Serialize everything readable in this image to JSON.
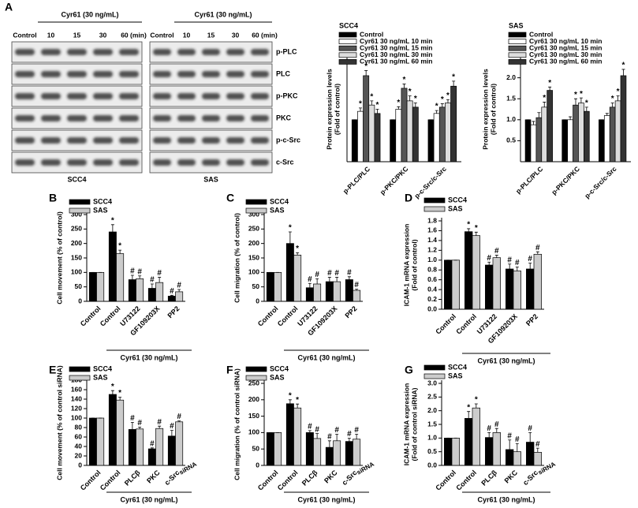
{
  "blot_panel": {
    "label": "A",
    "rows": [
      "p-PLC",
      "PLC",
      "p-PKC",
      "PKC",
      "p-c-Src",
      "c-Src"
    ],
    "blots": [
      {
        "caption": "SCC4",
        "treatment": "Cyr61 (30 ng/mL)",
        "lanes": [
          "Control",
          "10",
          "15",
          "30",
          "60 (min)"
        ]
      },
      {
        "caption": "SAS",
        "treatment": "Cyr61 (30 ng/mL)",
        "lanes": [
          "Control",
          "10",
          "15",
          "30",
          "60 (min)"
        ]
      }
    ]
  },
  "chart_data": [
    {
      "type": "bar",
      "title": "SCC4",
      "ylabel": [
        "Protein expression levels",
        "(Fold of control)"
      ],
      "categories": [
        "p-PLC/PLC",
        "p-PKC/PKC",
        "p-c-Src/c-Src"
      ],
      "ylim": [
        0,
        2.5
      ],
      "series": [
        {
          "name": "Control",
          "color": "#000000",
          "values": [
            1,
            1,
            1
          ],
          "errors": [
            0,
            0,
            0
          ],
          "annotations": [
            null,
            null,
            null
          ]
        },
        {
          "name": "Cyr61 30 ng/mL 10 min",
          "color": "#ffffff",
          "values": [
            1.2,
            1.25,
            1.15
          ],
          "errors": [
            0.08,
            0.06,
            0.07
          ],
          "annotations": [
            "*",
            "*",
            "*"
          ]
        },
        {
          "name": "Cyr61 30 ng/mL 15 min",
          "color": "#555555",
          "values": [
            2.05,
            1.75,
            1.3
          ],
          "errors": [
            0.12,
            0.1,
            0.08
          ],
          "annotations": [
            "*",
            "*",
            "*"
          ]
        },
        {
          "name": "Cyr61 30 ng/mL 30 min",
          "color": "#dddddd",
          "values": [
            1.35,
            1.45,
            1.4
          ],
          "errors": [
            0.1,
            0.12,
            0.08
          ],
          "annotations": [
            "*",
            "*",
            "*"
          ]
        },
        {
          "name": "Cyr61 30 ng/mL 60 min",
          "color": "#333333",
          "values": [
            1.15,
            1.3,
            1.8
          ],
          "errors": [
            0.1,
            0.1,
            0.12
          ],
          "annotations": [
            "*",
            "*",
            "*"
          ]
        }
      ]
    },
    {
      "type": "bar",
      "title": "SAS",
      "ylabel": [
        "Protein expression levels",
        "(Fold of control)"
      ],
      "categories": [
        "p-PLC/PLC",
        "p-PKC/PKC",
        "p-c-Src/c-Src"
      ],
      "ylim": [
        0,
        2.5
      ],
      "yticks": [
        {
          "value": 0.5,
          "label": "0.5"
        },
        {
          "value": 1,
          "label": "1.0"
        },
        {
          "value": 1.5,
          "label": "1.5"
        },
        {
          "value": 2,
          "label": "2.0"
        }
      ],
      "series": [
        {
          "name": "Control",
          "color": "#000000",
          "values": [
            1,
            1,
            1
          ],
          "errors": [
            0,
            0,
            0
          ],
          "annotations": [
            null,
            null,
            null
          ]
        },
        {
          "name": "Cyr61 30 ng/mL 10 min",
          "color": "#ffffff",
          "values": [
            0.88,
            1.0,
            1.1
          ],
          "errors": [
            0.08,
            0.07,
            0.05
          ],
          "annotations": [
            null,
            null,
            null
          ]
        },
        {
          "name": "Cyr61 30 ng/mL 15 min",
          "color": "#555555",
          "values": [
            1.05,
            1.35,
            1.3
          ],
          "errors": [
            0.12,
            0.15,
            0.1
          ],
          "annotations": [
            null,
            "*",
            "*"
          ]
        },
        {
          "name": "Cyr61 30 ng/mL 30 min",
          "color": "#dddddd",
          "values": [
            1.3,
            1.4,
            1.45
          ],
          "errors": [
            0.12,
            0.12,
            0.12
          ],
          "annotations": [
            "*",
            "*",
            "*"
          ]
        },
        {
          "name": "Cyr61 30 ng/mL 60 min",
          "color": "#333333",
          "values": [
            1.7,
            1.2,
            2.05
          ],
          "errors": [
            0.08,
            0.1,
            0.15
          ],
          "annotations": [
            "*",
            "*",
            "*"
          ]
        }
      ]
    },
    {
      "type": "bar",
      "panel": "B",
      "ylabel": [
        "Cell movement (% of control)"
      ],
      "group_label": "Cyr61 (30 ng/mL)",
      "categories": [
        "Control",
        "Control",
        "U73122",
        "GF109203X",
        "PP2"
      ],
      "ylim": [
        0,
        300
      ],
      "yticks": [
        0,
        50,
        100,
        150,
        200,
        250,
        300
      ],
      "series": [
        {
          "name": "SCC4",
          "color": "#000000",
          "values": [
            100,
            240,
            75,
            45,
            18
          ],
          "errors": [
            0,
            25,
            15,
            15,
            3
          ],
          "annotations": [
            null,
            "*",
            "#",
            "#",
            "#"
          ]
        },
        {
          "name": "SAS",
          "color": "#cccccc",
          "values": [
            100,
            165,
            78,
            65,
            33
          ],
          "errors": [
            0,
            12,
            10,
            18,
            8
          ],
          "annotations": [
            null,
            "*",
            "#",
            "#",
            "#"
          ]
        }
      ]
    },
    {
      "type": "bar",
      "panel": "C",
      "ylabel": [
        "Cell migration (% of control)"
      ],
      "group_label": "Cyr61 (30 ng/mL)",
      "categories": [
        "Control",
        "Control",
        "U73122",
        "GF109203X",
        "PP2"
      ],
      "ylim": [
        0,
        300
      ],
      "yticks": [
        0,
        50,
        100,
        150,
        200,
        250,
        300
      ],
      "series": [
        {
          "name": "SCC4",
          "color": "#000000",
          "values": [
            100,
            200,
            47,
            68,
            75
          ],
          "errors": [
            0,
            40,
            15,
            15,
            10
          ],
          "annotations": [
            null,
            "*",
            "#",
            "#",
            "#"
          ]
        },
        {
          "name": "SAS",
          "color": "#cccccc",
          "values": [
            100,
            160,
            60,
            68,
            38
          ],
          "errors": [
            0,
            8,
            18,
            15,
            4
          ],
          "annotations": [
            null,
            "*",
            "#",
            "#",
            "#"
          ]
        }
      ]
    },
    {
      "type": "bar",
      "panel": "D",
      "ylabel": [
        "ICAM-1 mRNA expression",
        "(Fold of control)"
      ],
      "group_label": "Cyr61 (30 ng/mL)",
      "categories": [
        "Control",
        "Control",
        "U73122",
        "GF109203X",
        "PP2"
      ],
      "ylim": [
        0,
        1.8
      ],
      "yticks": [
        {
          "value": 0,
          "label": "0.0"
        },
        {
          "value": 0.2,
          "label": "0.2"
        },
        {
          "value": 0.4,
          "label": "0.4"
        },
        {
          "value": 0.6,
          "label": "0.6"
        },
        {
          "value": 0.8,
          "label": "0.8"
        },
        {
          "value": 1,
          "label": "1.0"
        },
        {
          "value": 1.2,
          "label": "1.2"
        },
        {
          "value": 1.4,
          "label": "1.4"
        },
        {
          "value": 1.6,
          "label": "1.6"
        },
        {
          "value": 1.8,
          "label": "1.8"
        }
      ],
      "series": [
        {
          "name": "SCC4",
          "color": "#000000",
          "values": [
            1,
            1.58,
            0.9,
            0.82,
            0.82
          ],
          "errors": [
            0,
            0.06,
            0.06,
            0.1,
            0.12
          ],
          "annotations": [
            null,
            "*",
            "#",
            "#",
            "#"
          ]
        },
        {
          "name": "SAS",
          "color": "#cccccc",
          "values": [
            1,
            1.5,
            1.05,
            0.78,
            1.12
          ],
          "errors": [
            0,
            0.07,
            0.05,
            0.08,
            0.05
          ],
          "annotations": [
            null,
            "*",
            "#",
            "#",
            "#"
          ]
        }
      ]
    },
    {
      "type": "bar",
      "panel": "E",
      "ylabel": [
        "Cell movement (% of control siRNA)"
      ],
      "group_label": "Cyr61 (30 ng/mL)",
      "suffix_label": "siRNA",
      "categories": [
        "Control",
        "Control",
        "PLCβ",
        "PKC",
        "c-Src"
      ],
      "ylim": [
        0,
        180
      ],
      "yticks": [
        0,
        20,
        40,
        60,
        80,
        100,
        120,
        140,
        160,
        180
      ],
      "series": [
        {
          "name": "SCC4",
          "color": "#000000",
          "values": [
            100,
            150,
            76,
            35,
            62
          ],
          "errors": [
            0,
            8,
            15,
            2,
            12
          ],
          "annotations": [
            null,
            "*",
            "#",
            "#",
            "#"
          ]
        },
        {
          "name": "SAS",
          "color": "#cccccc",
          "values": [
            100,
            138,
            77,
            78,
            92
          ],
          "errors": [
            0,
            6,
            4,
            5,
            2
          ],
          "annotations": [
            null,
            "*",
            "#",
            "#",
            "#"
          ]
        }
      ]
    },
    {
      "type": "bar",
      "panel": "F",
      "ylabel": [
        "Cell migration (% of control siRNA)"
      ],
      "group_label": "Cyr61 (30 ng/mL)",
      "suffix_label": "siRNA",
      "categories": [
        "Control",
        "Control",
        "PLCβ",
        "PKC",
        "c-Src"
      ],
      "ylim": [
        0,
        250
      ],
      "yticks": [
        0,
        50,
        100,
        150,
        200,
        250
      ],
      "series": [
        {
          "name": "SCC4",
          "color": "#000000",
          "values": [
            100,
            188,
            100,
            55,
            73
          ],
          "errors": [
            0,
            12,
            6,
            20,
            10
          ],
          "annotations": [
            null,
            "*",
            "#",
            "#",
            "#"
          ]
        },
        {
          "name": "SAS",
          "color": "#cccccc",
          "values": [
            100,
            175,
            82,
            75,
            80
          ],
          "errors": [
            0,
            12,
            15,
            20,
            15
          ],
          "annotations": [
            null,
            "*",
            "#",
            "#",
            "#"
          ]
        }
      ]
    },
    {
      "type": "bar",
      "panel": "G",
      "ylabel": [
        "ICAM-1 mRNA expression",
        "(Fold of control siRNA)"
      ],
      "group_label": "Cyr61 (30 ng/mL)",
      "suffix_label": "siRNA",
      "categories": [
        "Control",
        "Control",
        "PLCβ",
        "PKC",
        "c-Src"
      ],
      "ylim": [
        0,
        3
      ],
      "yticks": [
        {
          "value": 0,
          "label": "0.0"
        },
        {
          "value": 0.5,
          "label": "0.5"
        },
        {
          "value": 1,
          "label": "1.0"
        },
        {
          "value": 1.5,
          "label": "1.5"
        },
        {
          "value": 2,
          "label": "2.0"
        },
        {
          "value": 2.5,
          "label": "2.5"
        },
        {
          "value": 3,
          "label": "3.0"
        }
      ],
      "series": [
        {
          "name": "SCC4",
          "color": "#000000",
          "values": [
            1,
            1.72,
            1.02,
            0.58,
            0.85
          ],
          "errors": [
            0,
            0.25,
            0.18,
            0.35,
            0.35
          ],
          "annotations": [
            null,
            "*",
            "#",
            "#",
            "#"
          ]
        },
        {
          "name": "SAS",
          "color": "#cccccc",
          "values": [
            1,
            2.1,
            1.2,
            0.5,
            0.48
          ],
          "errors": [
            0,
            0.15,
            0.15,
            0.3,
            0.15
          ],
          "annotations": [
            null,
            "*",
            "#",
            "#",
            "#"
          ]
        }
      ]
    }
  ]
}
